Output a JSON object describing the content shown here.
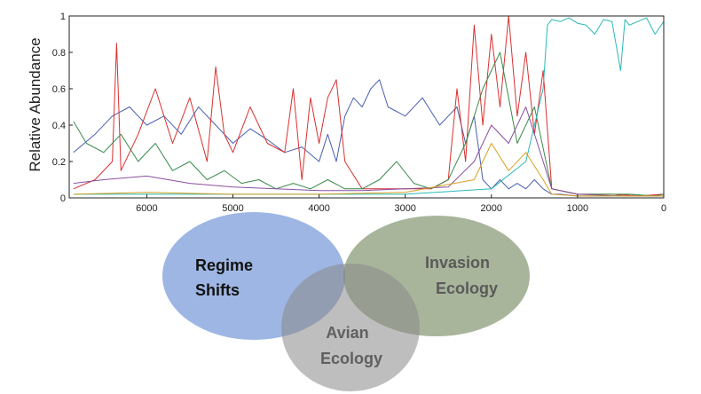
{
  "chart_data": {
    "type": "line",
    "title": "",
    "xlabel": "",
    "ylabel": "Relative Abundance",
    "xlim": [
      6900,
      0
    ],
    "ylim": [
      0,
      1
    ],
    "x_reversed": true,
    "x_ticks": [
      "6000",
      "5000",
      "4000",
      "3000",
      "2000",
      "1000",
      "0"
    ],
    "x_tick_values": [
      6000,
      5000,
      4000,
      3000,
      2000,
      1000,
      0
    ],
    "y_ticks": [
      "0",
      "0.2",
      "0.4",
      "0.6",
      "0.8",
      "1"
    ],
    "y_tick_values": [
      0,
      0.2,
      0.4,
      0.6,
      0.8,
      1
    ],
    "grid": false,
    "series": [
      {
        "color": "#4a5fb0",
        "x": [
          6850,
          6600,
          6400,
          6200,
          6000,
          5800,
          5600,
          5400,
          5200,
          5000,
          4800,
          4600,
          4400,
          4200,
          4000,
          3900,
          3800,
          3700,
          3600,
          3500,
          3400,
          3300,
          3200,
          3000,
          2800,
          2600,
          2400,
          2300,
          2200,
          2100,
          2000,
          1900,
          1800,
          1700,
          1600,
          1500,
          1400,
          1300,
          1200,
          1000,
          800,
          600,
          400,
          200,
          0
        ],
        "values": [
          0.25,
          0.35,
          0.45,
          0.5,
          0.4,
          0.45,
          0.35,
          0.5,
          0.4,
          0.3,
          0.38,
          0.32,
          0.25,
          0.28,
          0.2,
          0.35,
          0.2,
          0.45,
          0.55,
          0.5,
          0.6,
          0.65,
          0.5,
          0.45,
          0.55,
          0.4,
          0.5,
          0.3,
          0.45,
          0.1,
          0.05,
          0.1,
          0.05,
          0.08,
          0.05,
          0.1,
          0.05,
          0.02,
          0.02,
          0.01,
          0.01,
          0.01,
          0.02,
          0.01,
          0.02
        ]
      },
      {
        "color": "#d93030",
        "x": [
          6850,
          6600,
          6400,
          6350,
          6300,
          6100,
          5900,
          5700,
          5500,
          5300,
          5200,
          5100,
          5000,
          4800,
          4600,
          4400,
          4300,
          4200,
          4100,
          4000,
          3900,
          3800,
          3700,
          3500,
          3300,
          3100,
          2900,
          2700,
          2500,
          2400,
          2300,
          2200,
          2100,
          2000,
          1900,
          1800,
          1700,
          1600,
          1500,
          1400,
          1300,
          1000,
          600,
          300,
          0
        ],
        "values": [
          0.05,
          0.1,
          0.2,
          0.85,
          0.15,
          0.35,
          0.6,
          0.3,
          0.55,
          0.2,
          0.72,
          0.35,
          0.25,
          0.5,
          0.3,
          0.25,
          0.6,
          0.1,
          0.55,
          0.3,
          0.55,
          0.65,
          0.2,
          0.05,
          0.05,
          0.05,
          0.05,
          0.05,
          0.1,
          0.6,
          0.2,
          0.95,
          0.4,
          0.9,
          0.5,
          1.0,
          0.45,
          0.8,
          0.35,
          0.7,
          0.05,
          0.02,
          0.02,
          0.01,
          0.02
        ]
      },
      {
        "color": "#3a8a4a",
        "x": [
          6850,
          6700,
          6500,
          6300,
          6100,
          5900,
          5700,
          5500,
          5300,
          5100,
          4900,
          4700,
          4500,
          4300,
          4100,
          3900,
          3700,
          3500,
          3300,
          3100,
          2900,
          2700,
          2500,
          2300,
          2100,
          1900,
          1700,
          1500,
          1300,
          1000,
          700,
          400,
          100,
          0
        ],
        "values": [
          0.42,
          0.3,
          0.25,
          0.35,
          0.2,
          0.3,
          0.15,
          0.2,
          0.1,
          0.15,
          0.08,
          0.1,
          0.05,
          0.08,
          0.05,
          0.1,
          0.05,
          0.05,
          0.1,
          0.2,
          0.08,
          0.05,
          0.1,
          0.3,
          0.6,
          0.8,
          0.3,
          0.5,
          0.05,
          0.02,
          0.02,
          0.02,
          0.01,
          0.02
        ]
      },
      {
        "color": "#2ab8b8",
        "x": [
          6850,
          6000,
          5000,
          4000,
          3000,
          2000,
          1600,
          1400,
          1350,
          1300,
          1200,
          1100,
          1000,
          900,
          800,
          700,
          600,
          500,
          450,
          400,
          300,
          200,
          100,
          0
        ],
        "values": [
          0.02,
          0.02,
          0.02,
          0.02,
          0.02,
          0.05,
          0.2,
          0.6,
          0.95,
          0.98,
          0.97,
          0.99,
          0.96,
          0.95,
          0.9,
          0.98,
          0.97,
          0.7,
          0.98,
          0.95,
          0.97,
          0.99,
          0.9,
          0.97
        ]
      },
      {
        "color": "#8a4fa0",
        "x": [
          6850,
          6500,
          6000,
          5500,
          5000,
          4500,
          4000,
          3500,
          3000,
          2500,
          2200,
          2000,
          1800,
          1600,
          1400,
          1300,
          1000,
          500,
          0
        ],
        "values": [
          0.08,
          0.1,
          0.12,
          0.08,
          0.06,
          0.05,
          0.04,
          0.04,
          0.05,
          0.06,
          0.2,
          0.4,
          0.3,
          0.5,
          0.2,
          0.05,
          0.02,
          0.01,
          0.01
        ]
      },
      {
        "color": "#d9a020",
        "x": [
          6850,
          6000,
          5000,
          4000,
          3000,
          2200,
          2000,
          1800,
          1600,
          1400,
          1300,
          1000,
          500,
          0
        ],
        "values": [
          0.02,
          0.03,
          0.02,
          0.02,
          0.03,
          0.1,
          0.3,
          0.15,
          0.25,
          0.1,
          0.02,
          0.01,
          0.01,
          0.01
        ]
      }
    ]
  },
  "venn": {
    "sets": [
      {
        "label_line1": "Regime",
        "label_line2": "Shifts",
        "fill": "#6a8fd4",
        "text_color": "#111111"
      },
      {
        "label_line1": "Invasion",
        "label_line2": "Ecology",
        "fill": "#76885e",
        "text_color": "#5a5a5a"
      },
      {
        "label_line1": "Avian",
        "label_line2": "Ecology",
        "fill": "#8a8a8a",
        "text_color": "#606060"
      }
    ]
  }
}
